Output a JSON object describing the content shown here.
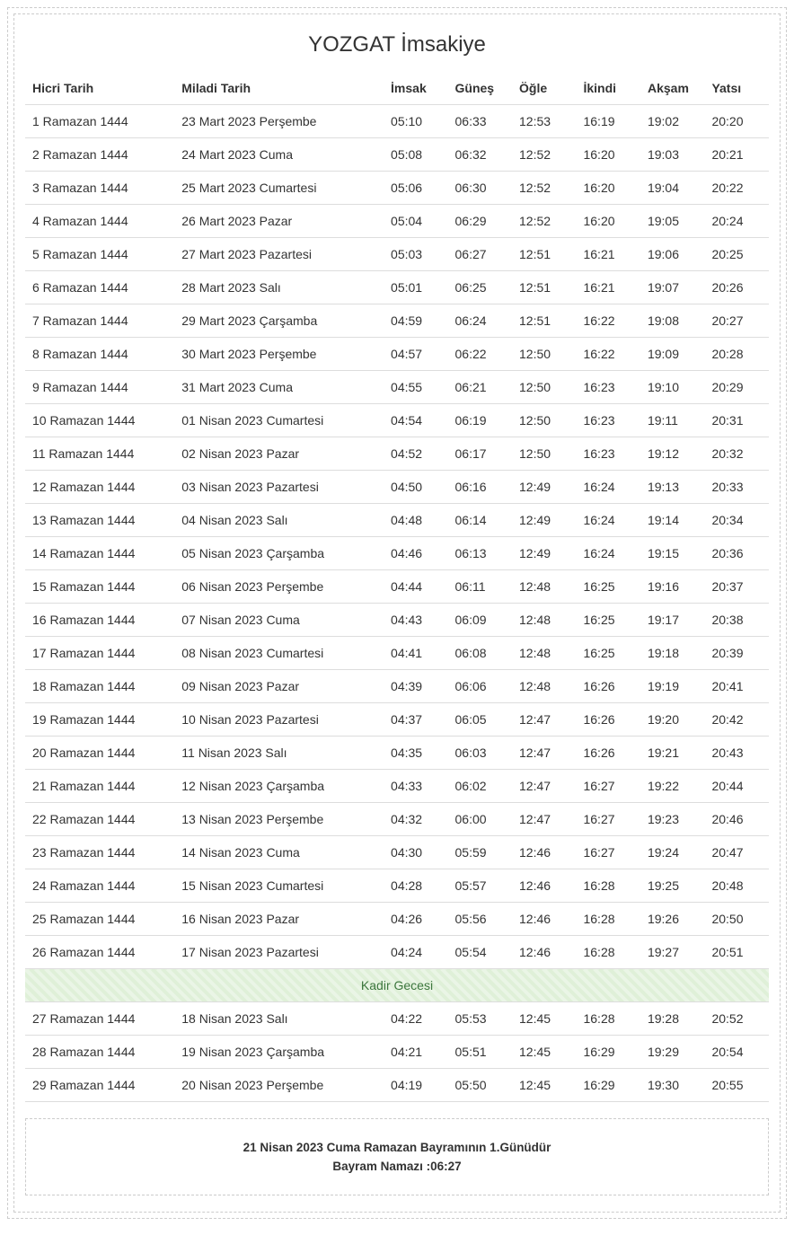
{
  "title": "YOZGAT İmsakiye",
  "columns": [
    "Hicri Tarih",
    "Miladi Tarih",
    "İmsak",
    "Güneş",
    "Öğle",
    "İkindi",
    "Akşam",
    "Yatsı"
  ],
  "rows": [
    {
      "hicri": "1 Ramazan 1444",
      "miladi": "23 Mart 2023 Perşembe",
      "t": [
        "05:10",
        "06:33",
        "12:53",
        "16:19",
        "19:02",
        "20:20"
      ]
    },
    {
      "hicri": "2 Ramazan 1444",
      "miladi": "24 Mart 2023 Cuma",
      "t": [
        "05:08",
        "06:32",
        "12:52",
        "16:20",
        "19:03",
        "20:21"
      ]
    },
    {
      "hicri": "3 Ramazan 1444",
      "miladi": "25 Mart 2023 Cumartesi",
      "t": [
        "05:06",
        "06:30",
        "12:52",
        "16:20",
        "19:04",
        "20:22"
      ]
    },
    {
      "hicri": "4 Ramazan 1444",
      "miladi": "26 Mart 2023 Pazar",
      "t": [
        "05:04",
        "06:29",
        "12:52",
        "16:20",
        "19:05",
        "20:24"
      ]
    },
    {
      "hicri": "5 Ramazan 1444",
      "miladi": "27 Mart 2023 Pazartesi",
      "t": [
        "05:03",
        "06:27",
        "12:51",
        "16:21",
        "19:06",
        "20:25"
      ]
    },
    {
      "hicri": "6 Ramazan 1444",
      "miladi": "28 Mart 2023 Salı",
      "t": [
        "05:01",
        "06:25",
        "12:51",
        "16:21",
        "19:07",
        "20:26"
      ]
    },
    {
      "hicri": "7 Ramazan 1444",
      "miladi": "29 Mart 2023 Çarşamba",
      "t": [
        "04:59",
        "06:24",
        "12:51",
        "16:22",
        "19:08",
        "20:27"
      ]
    },
    {
      "hicri": "8 Ramazan 1444",
      "miladi": "30 Mart 2023 Perşembe",
      "t": [
        "04:57",
        "06:22",
        "12:50",
        "16:22",
        "19:09",
        "20:28"
      ]
    },
    {
      "hicri": "9 Ramazan 1444",
      "miladi": "31 Mart 2023 Cuma",
      "t": [
        "04:55",
        "06:21",
        "12:50",
        "16:23",
        "19:10",
        "20:29"
      ]
    },
    {
      "hicri": "10 Ramazan 1444",
      "miladi": "01 Nisan 2023 Cumartesi",
      "t": [
        "04:54",
        "06:19",
        "12:50",
        "16:23",
        "19:11",
        "20:31"
      ]
    },
    {
      "hicri": "11 Ramazan 1444",
      "miladi": "02 Nisan 2023 Pazar",
      "t": [
        "04:52",
        "06:17",
        "12:50",
        "16:23",
        "19:12",
        "20:32"
      ]
    },
    {
      "hicri": "12 Ramazan 1444",
      "miladi": "03 Nisan 2023 Pazartesi",
      "t": [
        "04:50",
        "06:16",
        "12:49",
        "16:24",
        "19:13",
        "20:33"
      ]
    },
    {
      "hicri": "13 Ramazan 1444",
      "miladi": "04 Nisan 2023 Salı",
      "t": [
        "04:48",
        "06:14",
        "12:49",
        "16:24",
        "19:14",
        "20:34"
      ]
    },
    {
      "hicri": "14 Ramazan 1444",
      "miladi": "05 Nisan 2023 Çarşamba",
      "t": [
        "04:46",
        "06:13",
        "12:49",
        "16:24",
        "19:15",
        "20:36"
      ]
    },
    {
      "hicri": "15 Ramazan 1444",
      "miladi": "06 Nisan 2023 Perşembe",
      "t": [
        "04:44",
        "06:11",
        "12:48",
        "16:25",
        "19:16",
        "20:37"
      ]
    },
    {
      "hicri": "16 Ramazan 1444",
      "miladi": "07 Nisan 2023 Cuma",
      "t": [
        "04:43",
        "06:09",
        "12:48",
        "16:25",
        "19:17",
        "20:38"
      ]
    },
    {
      "hicri": "17 Ramazan 1444",
      "miladi": "08 Nisan 2023 Cumartesi",
      "t": [
        "04:41",
        "06:08",
        "12:48",
        "16:25",
        "19:18",
        "20:39"
      ]
    },
    {
      "hicri": "18 Ramazan 1444",
      "miladi": "09 Nisan 2023 Pazar",
      "t": [
        "04:39",
        "06:06",
        "12:48",
        "16:26",
        "19:19",
        "20:41"
      ]
    },
    {
      "hicri": "19 Ramazan 1444",
      "miladi": "10 Nisan 2023 Pazartesi",
      "t": [
        "04:37",
        "06:05",
        "12:47",
        "16:26",
        "19:20",
        "20:42"
      ]
    },
    {
      "hicri": "20 Ramazan 1444",
      "miladi": "11 Nisan 2023 Salı",
      "t": [
        "04:35",
        "06:03",
        "12:47",
        "16:26",
        "19:21",
        "20:43"
      ]
    },
    {
      "hicri": "21 Ramazan 1444",
      "miladi": "12 Nisan 2023 Çarşamba",
      "t": [
        "04:33",
        "06:02",
        "12:47",
        "16:27",
        "19:22",
        "20:44"
      ]
    },
    {
      "hicri": "22 Ramazan 1444",
      "miladi": "13 Nisan 2023 Perşembe",
      "t": [
        "04:32",
        "06:00",
        "12:47",
        "16:27",
        "19:23",
        "20:46"
      ]
    },
    {
      "hicri": "23 Ramazan 1444",
      "miladi": "14 Nisan 2023 Cuma",
      "t": [
        "04:30",
        "05:59",
        "12:46",
        "16:27",
        "19:24",
        "20:47"
      ]
    },
    {
      "hicri": "24 Ramazan 1444",
      "miladi": "15 Nisan 2023 Cumartesi",
      "t": [
        "04:28",
        "05:57",
        "12:46",
        "16:28",
        "19:25",
        "20:48"
      ]
    },
    {
      "hicri": "25 Ramazan 1444",
      "miladi": "16 Nisan 2023 Pazar",
      "t": [
        "04:26",
        "05:56",
        "12:46",
        "16:28",
        "19:26",
        "20:50"
      ]
    },
    {
      "hicri": "26 Ramazan 1444",
      "miladi": "17 Nisan 2023 Pazartesi",
      "t": [
        "04:24",
        "05:54",
        "12:46",
        "16:28",
        "19:27",
        "20:51"
      ]
    },
    {
      "special": "Kadir Gecesi"
    },
    {
      "hicri": "27 Ramazan 1444",
      "miladi": "18 Nisan 2023 Salı",
      "t": [
        "04:22",
        "05:53",
        "12:45",
        "16:28",
        "19:28",
        "20:52"
      ]
    },
    {
      "hicri": "28 Ramazan 1444",
      "miladi": "19 Nisan 2023 Çarşamba",
      "t": [
        "04:21",
        "05:51",
        "12:45",
        "16:29",
        "19:29",
        "20:54"
      ]
    },
    {
      "hicri": "29 Ramazan 1444",
      "miladi": "20 Nisan 2023 Perşembe",
      "t": [
        "04:19",
        "05:50",
        "12:45",
        "16:29",
        "19:30",
        "20:55"
      ]
    }
  ],
  "footer": {
    "line1": "21 Nisan 2023 Cuma Ramazan Bayramının 1.Günüdür",
    "line2": "Bayram Namazı :06:27"
  },
  "style": {
    "heading_fontsize": 24,
    "cell_fontsize": 14,
    "border_color": "#dddddd",
    "dashed_border_color": "#cccccc",
    "text_color": "#333333",
    "special_row_bg": "#dff0d8",
    "special_row_text": "#3c763d"
  }
}
